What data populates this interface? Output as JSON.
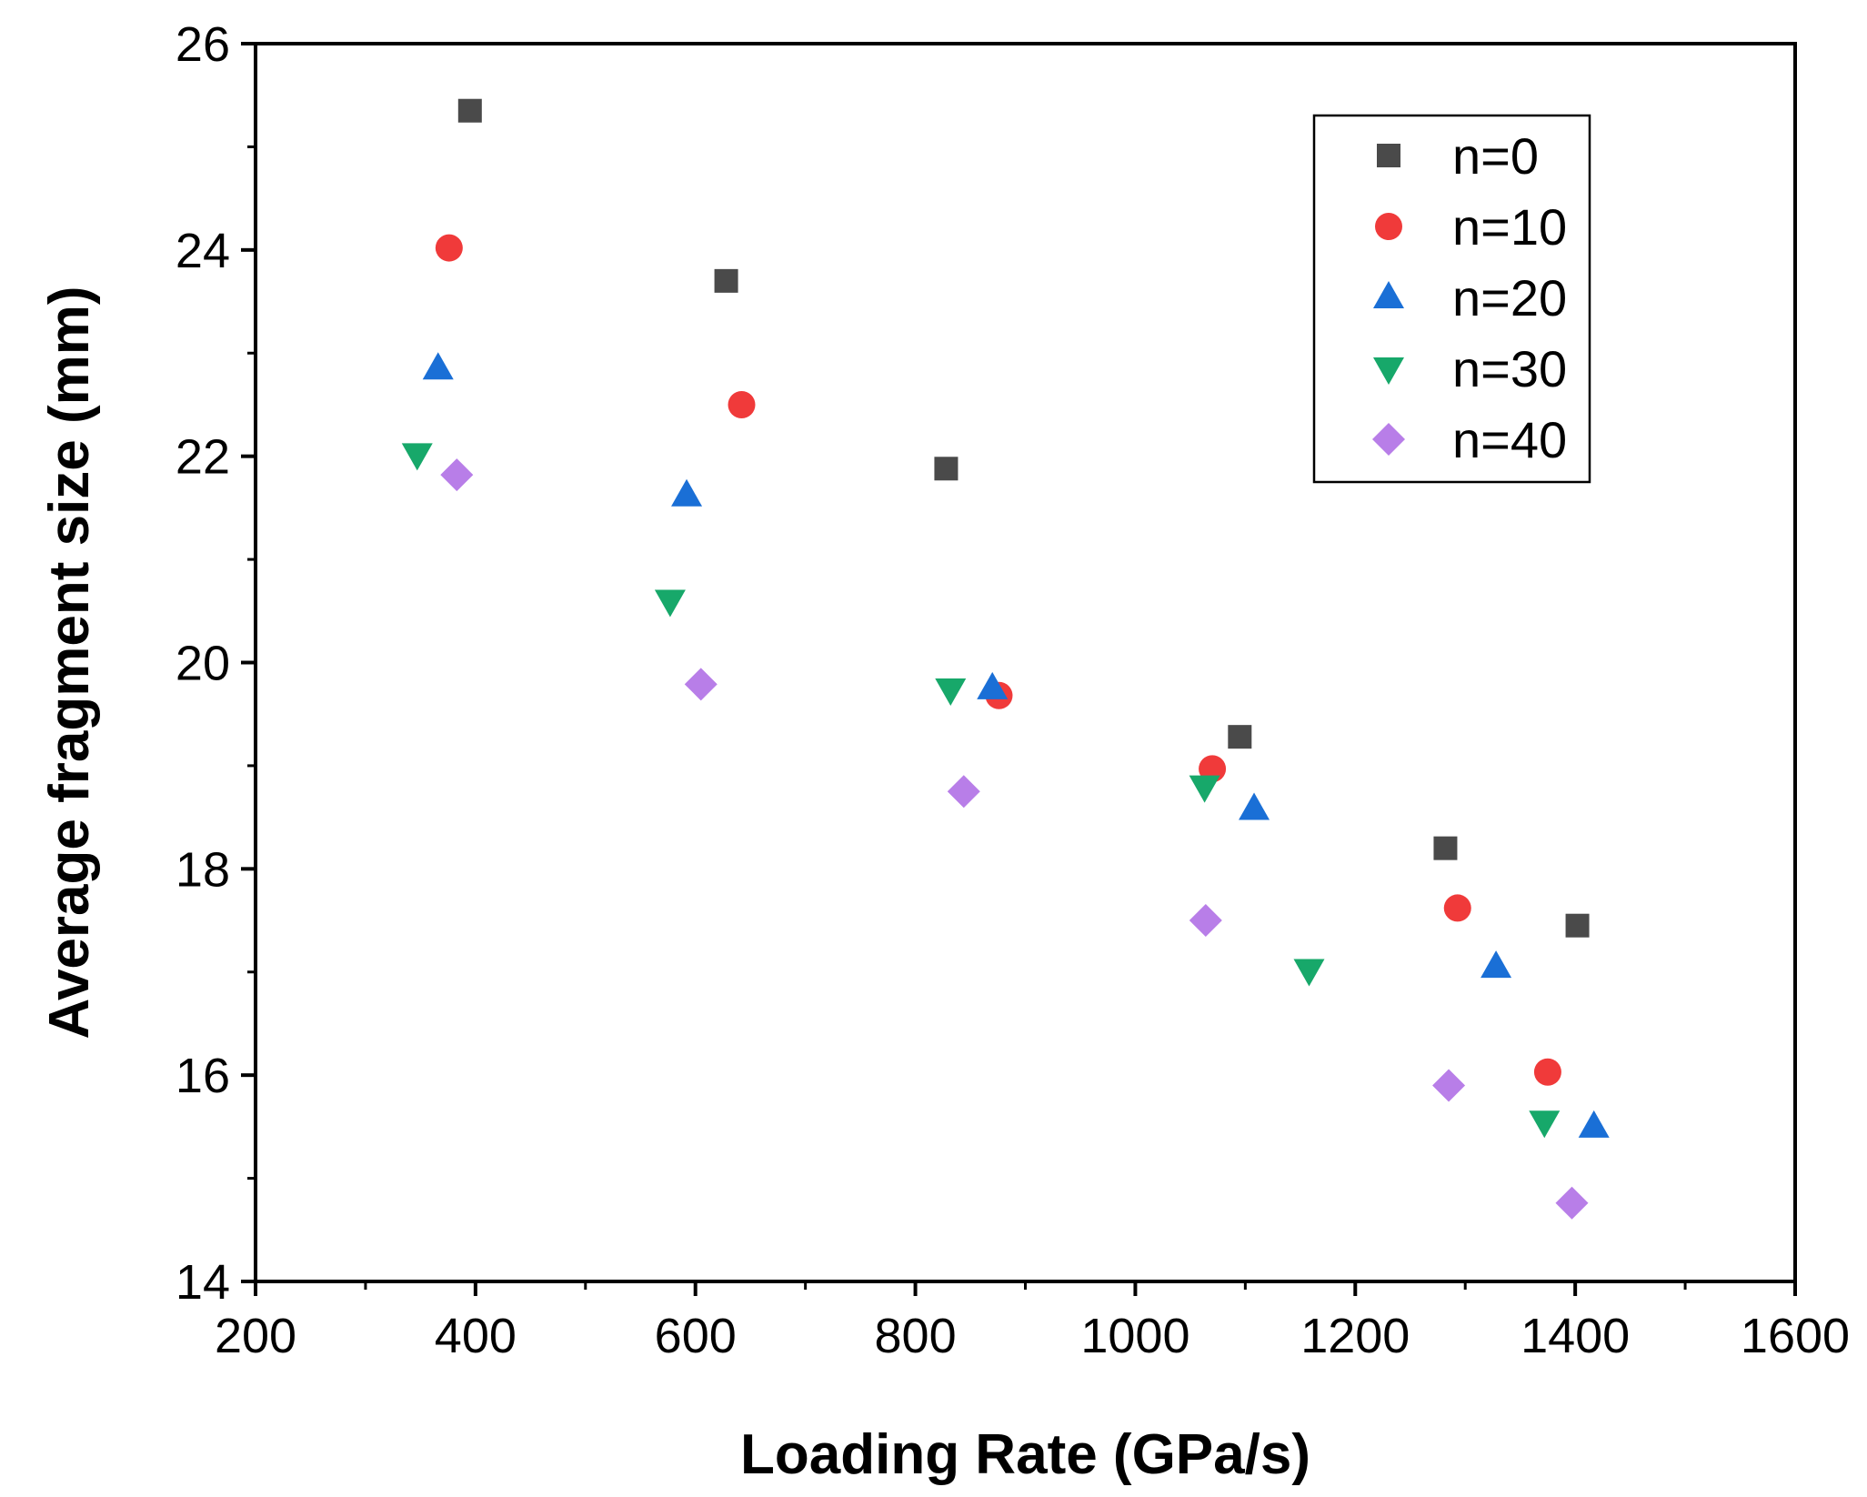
{
  "chart_data": {
    "type": "scatter",
    "title": "",
    "xlabel": "Loading Rate (GPa/s)",
    "ylabel": "Average fragment size (mm)",
    "xlim": [
      200,
      1600
    ],
    "ylim": [
      14,
      26
    ],
    "xticks": [
      200,
      400,
      600,
      800,
      1000,
      1200,
      1400,
      1600
    ],
    "yticks": [
      14,
      16,
      18,
      20,
      22,
      24,
      26
    ],
    "grid": false,
    "legend_position": "top-right",
    "series": [
      {
        "name": "n=0",
        "marker": "square",
        "color": "#4a4a4a",
        "points": [
          [
            395,
            25.35
          ],
          [
            628,
            23.7
          ],
          [
            828,
            21.88
          ],
          [
            1095,
            19.28
          ],
          [
            1282,
            18.2
          ],
          [
            1402,
            17.45
          ]
        ]
      },
      {
        "name": "n=10",
        "marker": "circle",
        "color": "#f03a3a",
        "points": [
          [
            376,
            24.02
          ],
          [
            642,
            22.5
          ],
          [
            876,
            19.68
          ],
          [
            1070,
            18.97
          ],
          [
            1293,
            17.62
          ],
          [
            1375,
            16.03
          ]
        ]
      },
      {
        "name": "n=20",
        "marker": "triangle-up",
        "color": "#1a6fd6",
        "points": [
          [
            366,
            22.85
          ],
          [
            592,
            21.62
          ],
          [
            870,
            19.75
          ],
          [
            1108,
            18.58
          ],
          [
            1328,
            17.05
          ],
          [
            1417,
            15.5
          ]
        ]
      },
      {
        "name": "n=30",
        "marker": "triangle-down",
        "color": "#17a86a",
        "points": [
          [
            347,
            22.02
          ],
          [
            577,
            20.6
          ],
          [
            832,
            19.74
          ],
          [
            1063,
            18.8
          ],
          [
            1158,
            17.02
          ],
          [
            1372,
            15.55
          ]
        ]
      },
      {
        "name": "n=40",
        "marker": "diamond",
        "color": "#b87ee8",
        "points": [
          [
            383,
            21.82
          ],
          [
            605,
            19.79
          ],
          [
            844,
            18.75
          ],
          [
            1064,
            17.5
          ],
          [
            1285,
            15.9
          ],
          [
            1397,
            14.76
          ]
        ]
      }
    ]
  }
}
